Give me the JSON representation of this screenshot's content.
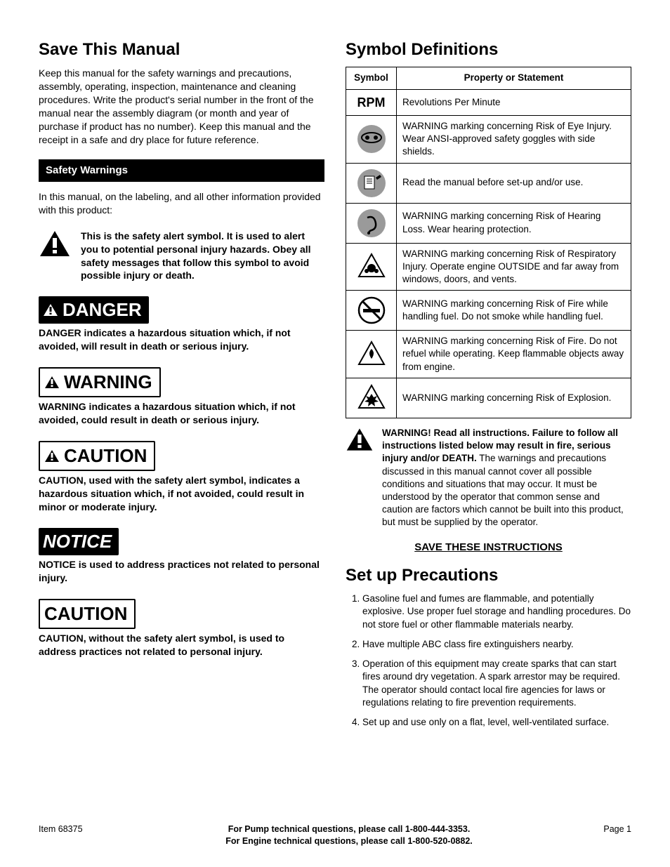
{
  "left": {
    "title": "Save This Manual",
    "intro": "Keep this manual for the safety warnings and precautions, assembly, operating, inspection, maintenance and cleaning procedures.  Write the product's serial number in the front of the manual near the assembly diagram (or month and year of purchase if product has no number).  Keep this manual and the receipt in a safe and dry place for future reference.",
    "safety_bar": "Safety Warnings",
    "safety_intro": "In this manual, on the labeling, and all other information provided with this product:",
    "alert_symbol_text": "This is the safety alert symbol.  It is used to alert you to potential personal injury hazards.  Obey all safety messages that follow this symbol to avoid possible injury or death.",
    "badges": {
      "danger": {
        "label": "DANGER",
        "def": "DANGER indicates a hazardous situation which, if not avoided, will result in death or serious injury."
      },
      "warning": {
        "label": "WARNING",
        "def": "WARNING indicates a hazardous situation which, if not avoided, could result in death or serious injury."
      },
      "caution": {
        "label": "CAUTION",
        "def": "CAUTION, used with the safety alert symbol, indicates a hazardous situation which, if not avoided, could result in minor or moderate injury."
      },
      "notice": {
        "label": "NOTICE",
        "def": "NOTICE is used to address practices not related to personal injury."
      },
      "caution_plain": {
        "label": "CAUTION",
        "def": "CAUTION, without the safety alert symbol, is used to address practices not related to personal injury."
      }
    }
  },
  "right": {
    "title": "Symbol Definitions",
    "table": {
      "headers": [
        "Symbol",
        "Property or Statement"
      ],
      "rows": [
        {
          "icon": "rpm",
          "text": "Revolutions Per Minute"
        },
        {
          "icon": "goggles",
          "text": "WARNING marking concerning Risk of Eye Injury.  Wear ANSI-approved safety goggles with side shields."
        },
        {
          "icon": "manual",
          "text": "Read the manual before set-up and/or use."
        },
        {
          "icon": "ear",
          "text": "WARNING marking concerning Risk of Hearing Loss.  Wear hearing protection."
        },
        {
          "icon": "respirator",
          "text": "WARNING marking concerning Risk of  Respiratory Injury.  Operate engine OUTSIDE and far away from windows, doors, and vents."
        },
        {
          "icon": "nosmoke",
          "text": "WARNING marking concerning Risk of Fire while handling fuel.  Do not smoke while handling fuel."
        },
        {
          "icon": "fire",
          "text": "WARNING marking concerning Risk of Fire.  Do not refuel while operating.  Keep flammable objects away from engine."
        },
        {
          "icon": "explosion",
          "text": "WARNING marking concerning Risk of Explosion."
        }
      ]
    },
    "warning_block": {
      "bold": "WARNING! Read all instructions.  Failure to follow all instructions listed below may result in fire, serious injury and/or DEATH.",
      "rest": "  The warnings and precautions discussed in this manual cannot cover all possible conditions and situations that may occur.  It must be understood by the operator that common sense and caution are factors which cannot be built into this product, but must be supplied by the operator."
    },
    "save_instructions": "SAVE THESE INSTRUCTIONS",
    "setup_title": "Set up Precautions",
    "precautions": [
      "Gasoline fuel and fumes are flammable, and potentially explosive.  Use proper fuel storage and handling procedures.  Do not store fuel or other flammable materials nearby.",
      "Have multiple ABC class fire extinguishers nearby.",
      "Operation of this equipment may create sparks that can start fires around dry vegetation. A spark arrestor may be required. The operator should contact local fire agencies for laws or regulations relating to fire prevention requirements.",
      "Set up and use only on a flat, level, well-ventilated surface."
    ]
  },
  "footer": {
    "item": "Item 68375",
    "line1": "For Pump technical questions, please call 1-800-444-3353.",
    "line2": "For Engine technical questions, please call 1-800-520-0882.",
    "page": "Page 1"
  },
  "colors": {
    "icon_gray": "#9a9a9a",
    "black": "#000000",
    "white": "#ffffff"
  }
}
